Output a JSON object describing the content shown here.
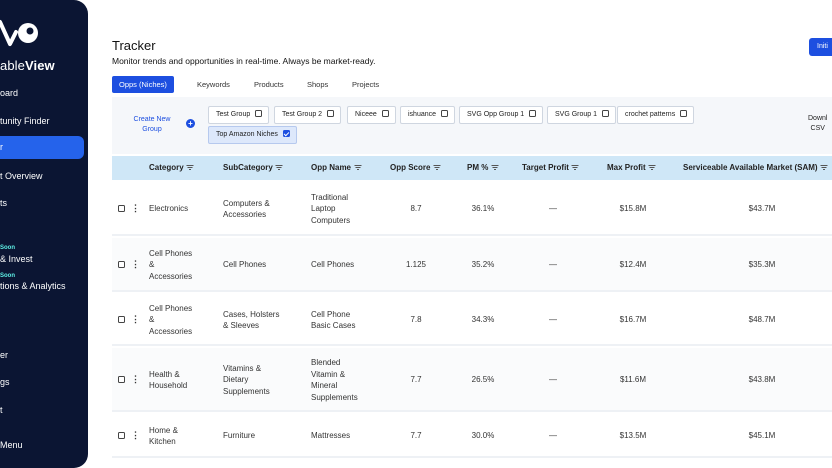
{
  "sidebar": {
    "brand_light": "able",
    "brand_bold": "View",
    "items": [
      {
        "label": "oard"
      },
      {
        "label": "tunity Finder"
      },
      {
        "label": "r"
      },
      {
        "label": "t Overview"
      },
      {
        "label": "ts"
      },
      {
        "label": "Soon"
      },
      {
        "label": "& Invest"
      },
      {
        "label": "Soon"
      },
      {
        "label": "tions & Analytics"
      },
      {
        "label": "er"
      },
      {
        "label": "gs"
      },
      {
        "label": "t"
      },
      {
        "label": "Menu"
      }
    ]
  },
  "header": {
    "title": "Tracker",
    "subtitle": "Monitor trends and opportunities in real-time. Always be market-ready.",
    "init_button": "Initi"
  },
  "tabs": [
    {
      "label": "Opps (Niches)",
      "active": true
    },
    {
      "label": "Keywords"
    },
    {
      "label": "Products"
    },
    {
      "label": "Shops"
    },
    {
      "label": "Projects"
    }
  ],
  "filters": {
    "create_group_line1": "Create New",
    "create_group_line2": "Group",
    "plus_icon": "+",
    "groups": [
      {
        "label": "Test Group",
        "checked": false
      },
      {
        "label": "Test Group 2",
        "checked": false
      },
      {
        "label": "Niceee",
        "checked": false
      },
      {
        "label": "ishuance",
        "checked": false
      },
      {
        "label": "SVG Opp Group 1",
        "checked": false
      },
      {
        "label": "SVG Group 1",
        "checked": false
      },
      {
        "label": "crochet patterns",
        "checked": false
      },
      {
        "label": "Top Amazon Niches",
        "checked": true
      }
    ],
    "download_line1": "Downl",
    "download_line2": "CSV"
  },
  "table": {
    "columns": [
      "Category",
      "SubCategory",
      "Opp Name",
      "Opp Score",
      "PM %",
      "Target Profit",
      "Max Profit",
      "Serviceable Available Market (SAM)"
    ],
    "rows": [
      {
        "category": [
          "Electronics"
        ],
        "subcategory": [
          "Computers &",
          "Accessories"
        ],
        "opp_name": [
          "Traditional",
          "Laptop",
          "Computers"
        ],
        "score": "8.7",
        "pm": "36.1%",
        "target": "—",
        "max_profit": "$15.8M",
        "sam": "$43.7M"
      },
      {
        "category": [
          "Cell Phones",
          "&",
          "Accessories"
        ],
        "subcategory": [
          "Cell Phones"
        ],
        "opp_name": [
          "Cell Phones"
        ],
        "score": "1.125",
        "pm": "35.2%",
        "target": "—",
        "max_profit": "$12.4M",
        "sam": "$35.3M"
      },
      {
        "category": [
          "Cell Phones",
          "&",
          "Accessories"
        ],
        "subcategory": [
          "Cases, Holsters",
          "& Sleeves"
        ],
        "opp_name": [
          "Cell Phone",
          "Basic Cases"
        ],
        "score": "7.8",
        "pm": "34.3%",
        "target": "—",
        "max_profit": "$16.7M",
        "sam": "$48.7M"
      },
      {
        "category": [
          "Health &",
          "Household"
        ],
        "subcategory": [
          "Vitamins &",
          "Dietary",
          "Supplements"
        ],
        "opp_name": [
          "Blended",
          "Vitamin &",
          "Mineral",
          "Supplements"
        ],
        "score": "7.7",
        "pm": "26.5%",
        "target": "—",
        "max_profit": "$11.6M",
        "sam": "$43.8M"
      },
      {
        "category": [
          "Home &",
          "Kitchen"
        ],
        "subcategory": [
          "Furniture"
        ],
        "opp_name": [
          "Mattresses"
        ],
        "score": "7.7",
        "pm": "30.0%",
        "target": "—",
        "max_profit": "$13.5M",
        "sam": "$45.1M"
      }
    ]
  },
  "colors": {
    "sidebar_bg": "#0b1533",
    "accent": "#1d4fe0",
    "soon_badge": "#5ef0e6",
    "table_header": "#cfe7f7"
  }
}
